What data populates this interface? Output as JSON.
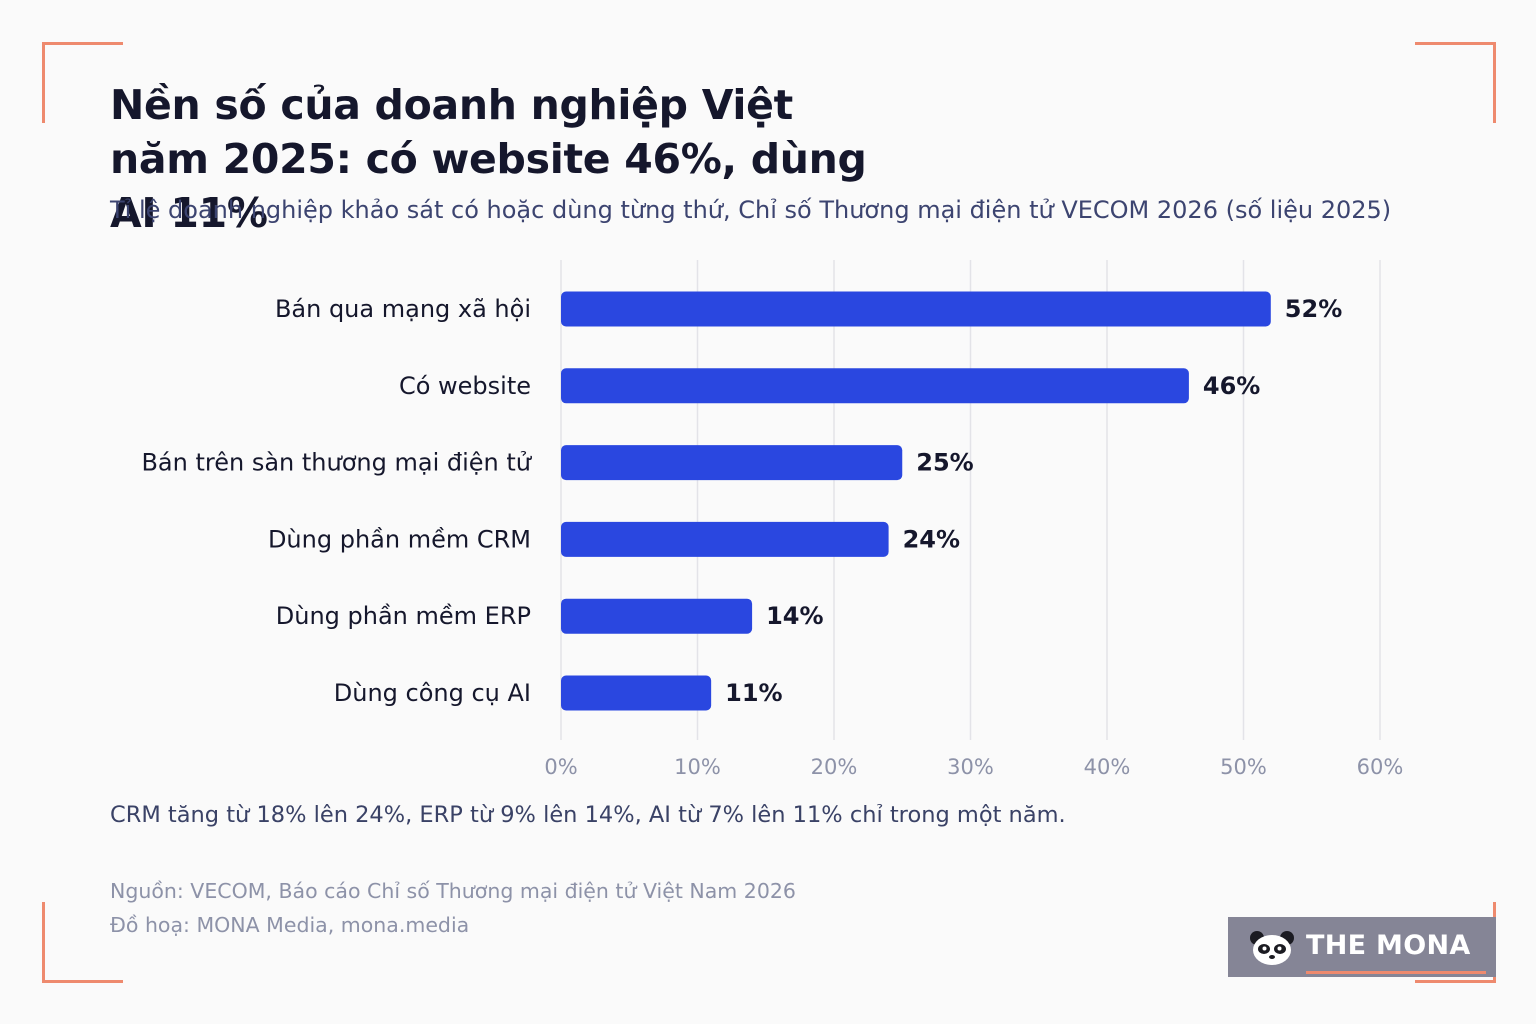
{
  "title": "Nền số của doanh nghiệp Việt năm 2025: có website 46%, dùng AI 11%",
  "subtitle": "Tỉ lệ doanh nghiệp khảo sát có hoặc dùng từng thứ, Chỉ số Thương mại điện tử VECOM 2026 (số liệu 2025)",
  "note": "CRM tăng từ 18% lên 24%, ERP từ 9% lên 14%, AI từ 7% lên 11% chỉ trong một năm.",
  "source_lines": [
    "Nguồn: VECOM, Báo cáo Chỉ số Thương mại điện tử Việt Nam 2026",
    "Đồ hoạ: MONA Media, mona.media"
  ],
  "logo": {
    "text": "THE MONA",
    "icon": "panda-icon"
  },
  "colors": {
    "bar": "#2a47e0",
    "grid": "#e3e3e8",
    "corner": "#ee8a6e",
    "logo_bg": "#858596"
  },
  "chart_data": {
    "type": "bar",
    "orientation": "horizontal",
    "categories": [
      "Bán qua mạng xã hội",
      "Có website",
      "Bán trên sàn thương mại điện tử",
      "Dùng phần mềm CRM",
      "Dùng phần mềm ERP",
      "Dùng công cụ AI"
    ],
    "values": [
      52,
      46,
      25,
      24,
      14,
      11
    ],
    "value_labels": [
      "52%",
      "46%",
      "25%",
      "24%",
      "14%",
      "11%"
    ],
    "xlim": [
      0,
      60
    ],
    "xticks": [
      0,
      10,
      20,
      30,
      40,
      50,
      60
    ],
    "xtick_labels": [
      "0%",
      "10%",
      "20%",
      "30%",
      "40%",
      "50%",
      "60%"
    ],
    "grid": "vertical",
    "legend": "none"
  }
}
